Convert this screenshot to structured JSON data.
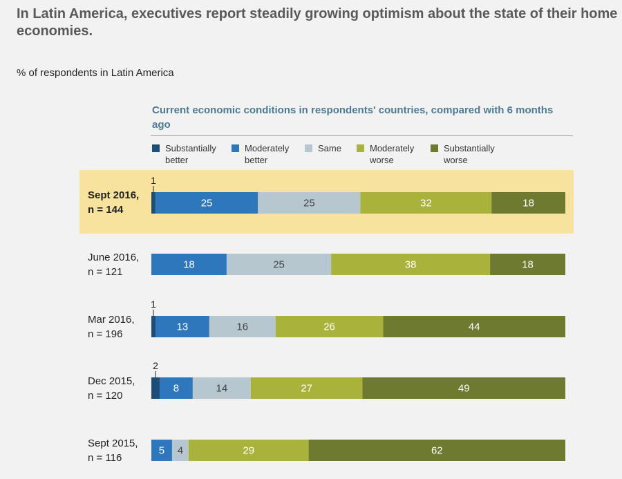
{
  "header": {
    "title": "In Latin America, executives report steadily growing optimism about the state of their home economies.",
    "subtitle": "% of respondents in Latin America"
  },
  "chart_data": {
    "type": "bar",
    "orientation": "horizontal-stacked",
    "title": "Current economic conditions in respondents' countries, compared with 6 months ago",
    "legend_position": "top",
    "series": [
      {
        "name": "Substantially better",
        "color": "#1c4e7a",
        "values": [
          1,
          0,
          1,
          2,
          0
        ]
      },
      {
        "name": "Moderately better",
        "color": "#2f77bc",
        "values": [
          25,
          18,
          13,
          8,
          5
        ]
      },
      {
        "name": "Same",
        "color": "#b7c7d0",
        "values": [
          25,
          25,
          16,
          14,
          4
        ]
      },
      {
        "name": "Moderately worse",
        "color": "#a9b23a",
        "values": [
          32,
          38,
          26,
          27,
          29
        ]
      },
      {
        "name": "Substantially worse",
        "color": "#6d7a30",
        "values": [
          18,
          18,
          44,
          49,
          62
        ]
      }
    ],
    "categories": [
      {
        "period": "Sept 2016,",
        "sample": "n = 144",
        "highlighted": true
      },
      {
        "period": "June 2016,",
        "sample": "n = 121",
        "highlighted": false
      },
      {
        "period": "Mar 2016,",
        "sample": "n = 196",
        "highlighted": false
      },
      {
        "period": "Dec 2015,",
        "sample": "n = 120",
        "highlighted": false
      },
      {
        "period": "Sept 2015,",
        "sample": "n = 116",
        "highlighted": false
      }
    ]
  }
}
